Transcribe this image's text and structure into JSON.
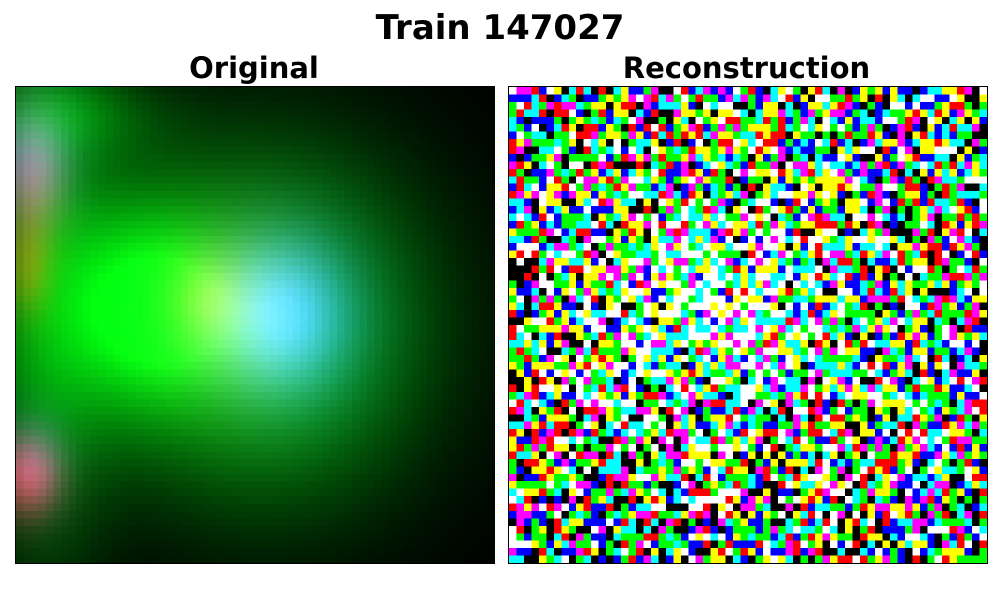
{
  "figure": {
    "title": "Train 147027"
  },
  "panels": [
    {
      "title": "Original"
    },
    {
      "title": "Reconstruction"
    }
  ]
}
